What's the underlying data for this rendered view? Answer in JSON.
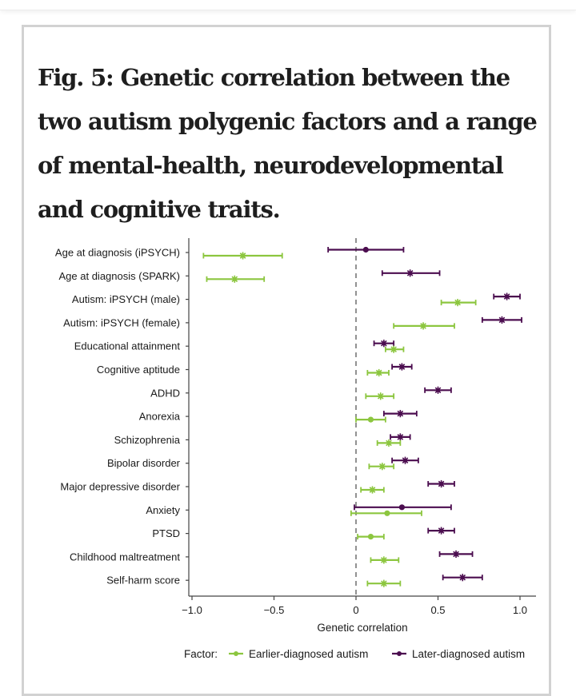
{
  "figure": {
    "title": "Fig. 5: Genetic correlation between the two autism polygenic factors and a range of mental-health, neurodevelopmental and cognitive traits."
  },
  "chart_data": {
    "type": "forest",
    "title": "Fig. 5: Genetic correlation between the two autism polygenic factors and a range of mental-health, neurodevelopmental and cognitive traits.",
    "xlabel": "Genetic correlation",
    "ylabel": "",
    "xlim": [
      -1.0,
      1.1
    ],
    "xticks": [
      -1.0,
      -0.5,
      0,
      0.5,
      1.0
    ],
    "xtick_labels": [
      "−1.0",
      "−0.5",
      "0",
      "0.5",
      "1.0"
    ],
    "reference_line": 0,
    "grid": false,
    "legend": {
      "title": "Factor:",
      "position": "bottom",
      "entries": [
        {
          "name": "Earlier-diagnosed autism",
          "color": "#8cc63f"
        },
        {
          "name": "Later-diagnosed autism",
          "color": "#4b0d4f"
        }
      ]
    },
    "categories": [
      "Age at diagnosis (iPSYCH)",
      "Age at diagnosis (SPARK)",
      "Autism: iPSYCH (male)",
      "Autism: iPSYCH (female)",
      "Educational attainment",
      "Cognitive aptitude",
      "ADHD",
      "Anorexia",
      "Schizophrenia",
      "Bipolar disorder",
      "Major depressive disorder",
      "Anxiety",
      "PTSD",
      "Childhood maltreatment",
      "Self-harm score"
    ],
    "series": [
      {
        "name": "Later-diagnosed autism",
        "color": "#4b0d4f",
        "values": [
          0.06,
          0.33,
          0.92,
          0.89,
          0.17,
          0.28,
          0.5,
          0.27,
          0.27,
          0.3,
          0.52,
          0.28,
          0.52,
          0.61,
          0.65
        ],
        "ci_low": [
          -0.17,
          0.16,
          0.84,
          0.77,
          0.11,
          0.22,
          0.42,
          0.17,
          0.21,
          0.22,
          0.44,
          -0.01,
          0.44,
          0.51,
          0.53
        ],
        "ci_high": [
          0.29,
          0.51,
          1.0,
          1.01,
          0.23,
          0.34,
          0.58,
          0.37,
          0.33,
          0.38,
          0.6,
          0.58,
          0.6,
          0.71,
          0.77
        ],
        "significant": [
          false,
          true,
          true,
          true,
          true,
          true,
          true,
          true,
          true,
          true,
          true,
          false,
          true,
          true,
          true
        ]
      },
      {
        "name": "Earlier-diagnosed autism",
        "color": "#8cc63f",
        "values": [
          -0.69,
          -0.74,
          0.62,
          0.41,
          0.23,
          0.14,
          0.15,
          0.09,
          0.2,
          0.16,
          0.1,
          0.19,
          0.09,
          0.17,
          0.17
        ],
        "ci_low": [
          -0.93,
          -0.91,
          0.52,
          0.23,
          0.18,
          0.07,
          0.06,
          0.0,
          0.13,
          0.08,
          0.03,
          -0.03,
          0.01,
          0.09,
          0.07
        ],
        "ci_high": [
          -0.45,
          -0.56,
          0.73,
          0.6,
          0.29,
          0.2,
          0.23,
          0.18,
          0.27,
          0.23,
          0.17,
          0.4,
          0.17,
          0.26,
          0.27
        ],
        "significant": [
          true,
          true,
          true,
          true,
          true,
          true,
          true,
          false,
          true,
          true,
          true,
          false,
          false,
          true,
          true
        ]
      }
    ]
  }
}
